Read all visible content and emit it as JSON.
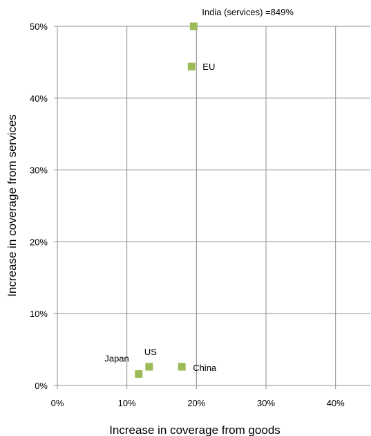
{
  "chart_data": {
    "type": "scatter",
    "xlabel": "Increase in coverage from goods",
    "ylabel": "Increase in coverage from services",
    "xlim": [
      0,
      45
    ],
    "ylim": [
      0,
      50
    ],
    "x_ticks": [
      0,
      10,
      20,
      30,
      40
    ],
    "y_ticks": [
      0,
      10,
      20,
      30,
      40,
      50
    ],
    "x_tick_labels": [
      "0%",
      "10%",
      "20%",
      "30%",
      "40%"
    ],
    "y_tick_labels": [
      "0%",
      "10%",
      "20%",
      "30%",
      "40%",
      "50%"
    ],
    "grid": true,
    "marker": "square",
    "marker_color": "#9bbb59",
    "points": [
      {
        "label": "India (services) =849%",
        "x": 19.6,
        "y": 50.0
      },
      {
        "label": "EU",
        "x": 19.3,
        "y": 44.4
      },
      {
        "label": "US",
        "x": 13.2,
        "y": 2.6
      },
      {
        "label": "Japan",
        "x": 11.7,
        "y": 1.6
      },
      {
        "label": "China",
        "x": 17.9,
        "y": 2.6
      }
    ]
  }
}
